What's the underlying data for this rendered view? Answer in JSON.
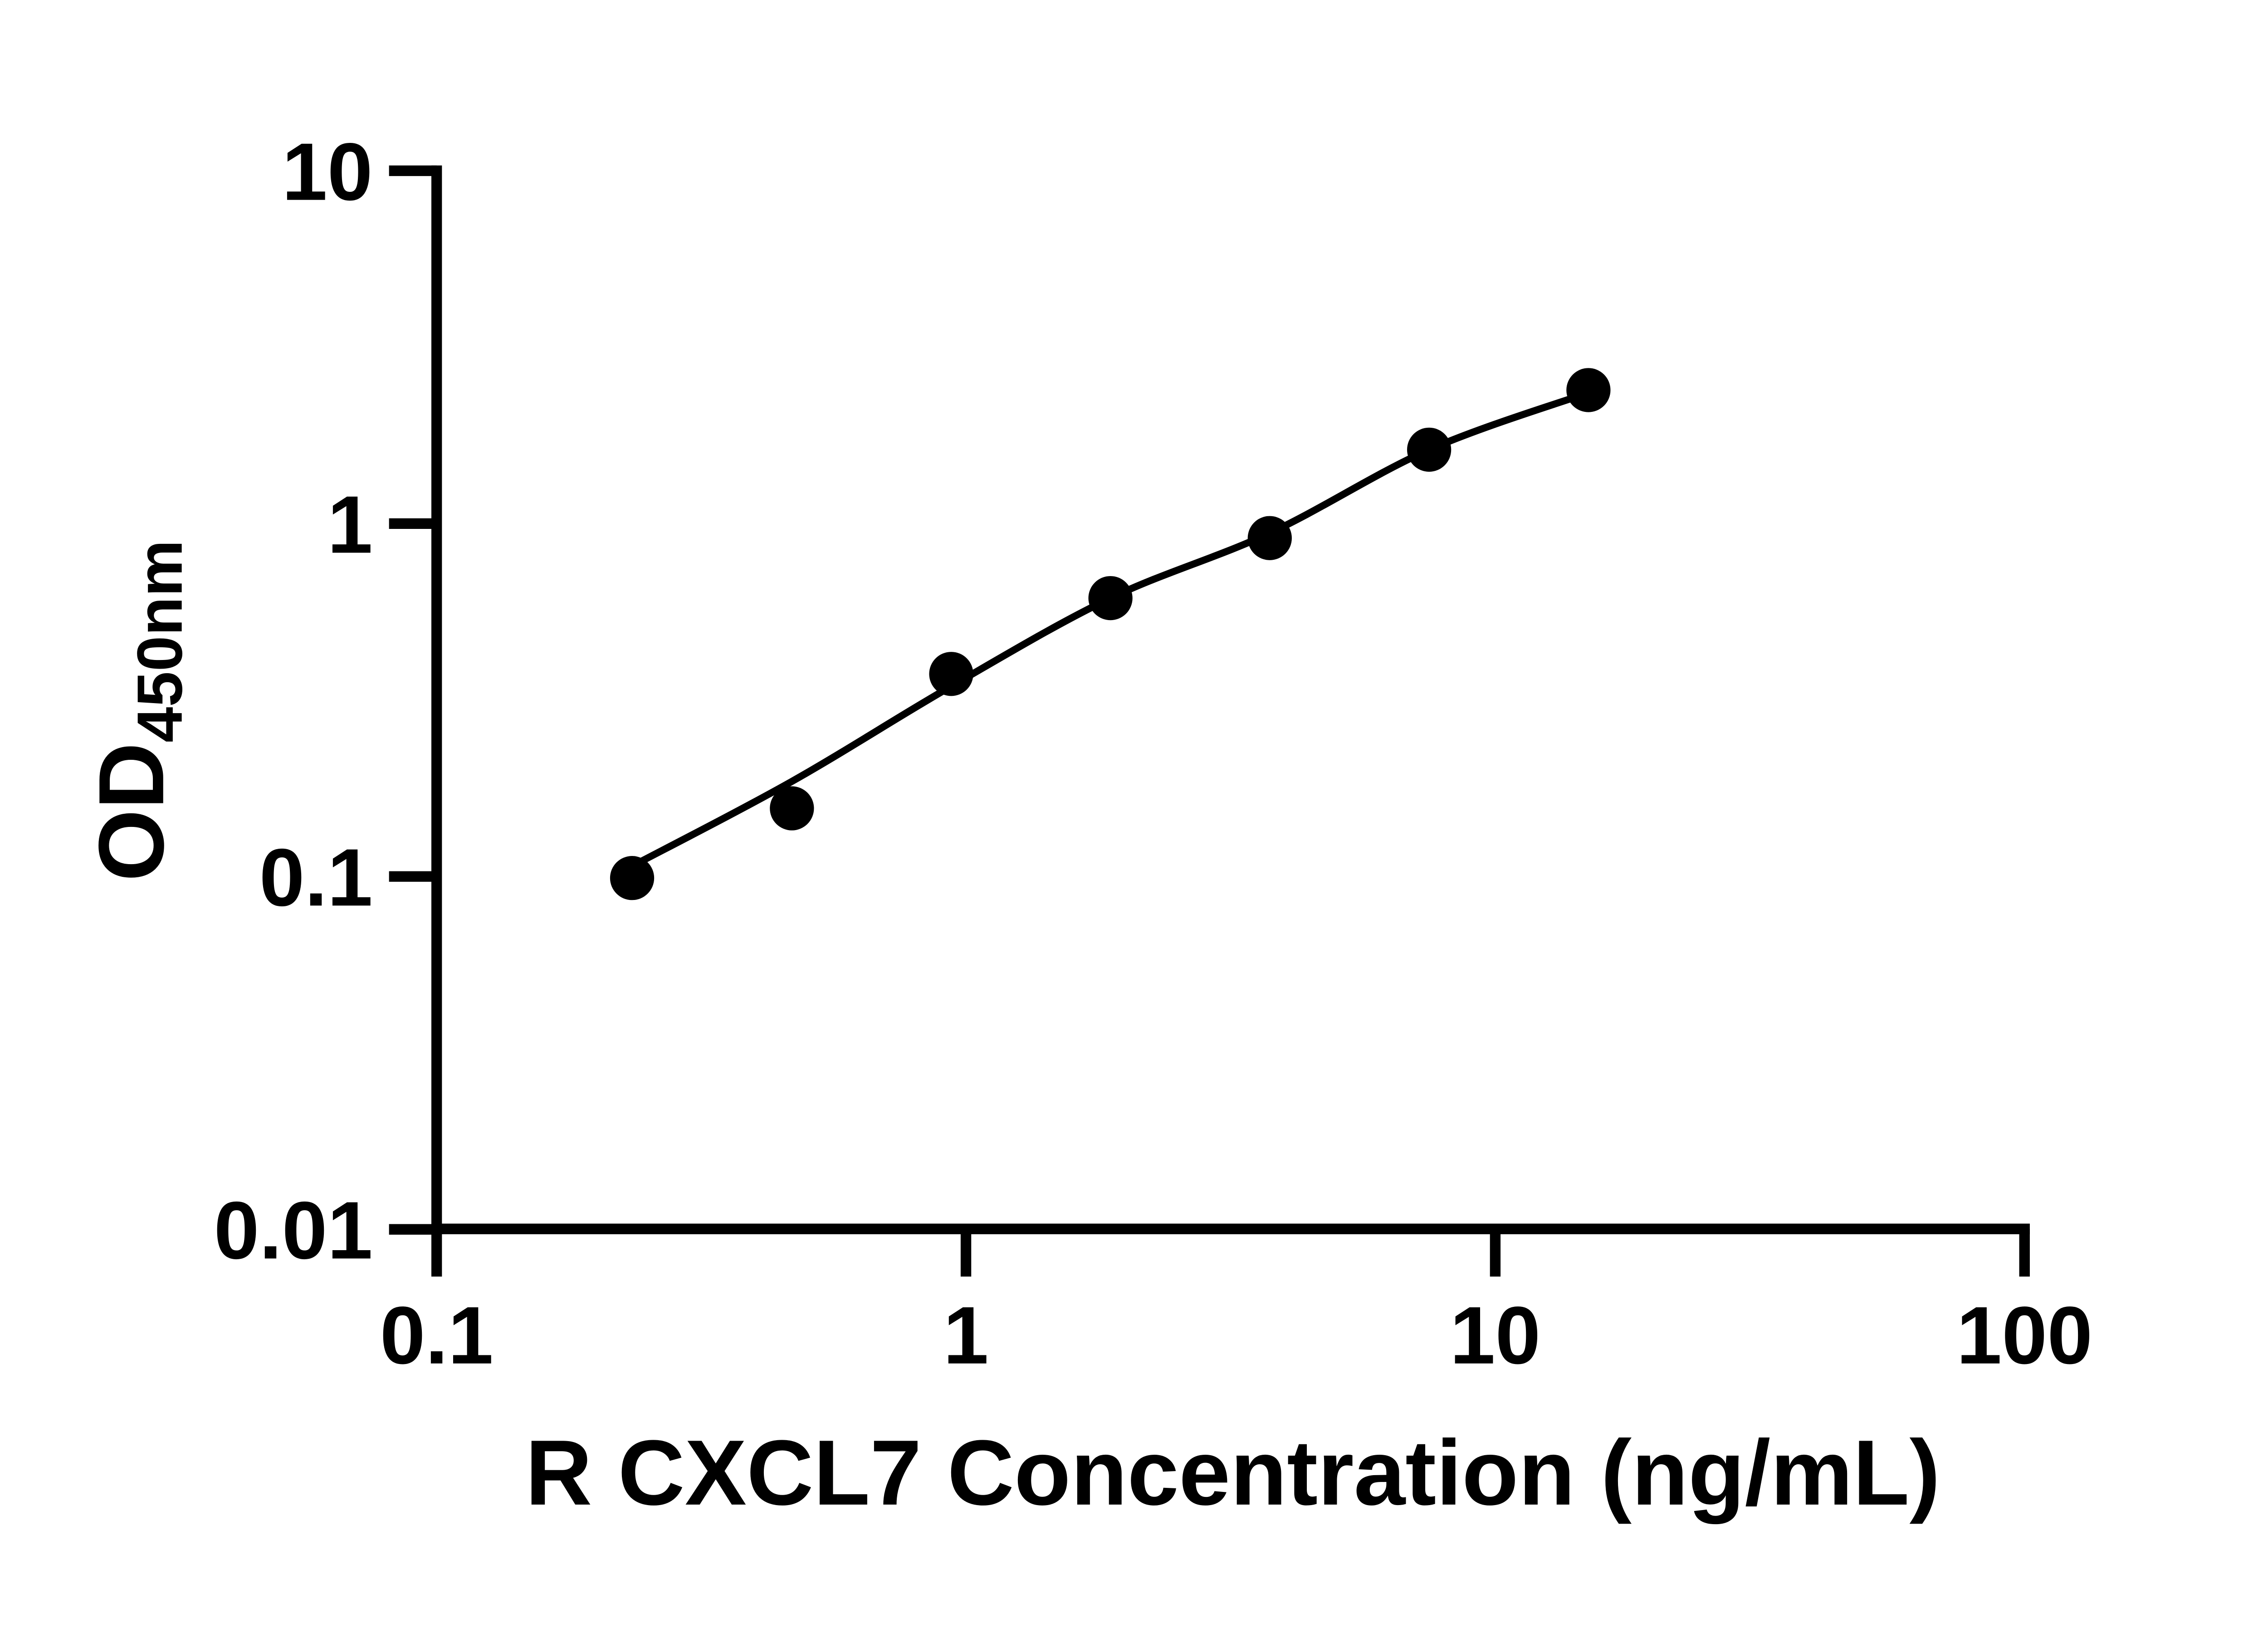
{
  "colors": {
    "ink": "#000000",
    "background": "#ffffff"
  },
  "chart_data": {
    "type": "scatter",
    "title": "",
    "xlabel": "R CXCL7 Concentration (ng/mL)",
    "ylabel_main": "OD",
    "ylabel_sub": "450nm",
    "x_scale": "log10",
    "y_scale": "log10",
    "xlim": [
      0.1,
      100
    ],
    "ylim": [
      0.01,
      10
    ],
    "x_tick_labels": [
      "0.1",
      "1",
      "10",
      "100"
    ],
    "y_tick_labels": [
      "10",
      "1",
      "0.1",
      "0.01"
    ],
    "grid": false,
    "legend": false,
    "series": [
      {
        "points": [
          {
            "x": 0.234,
            "y": 0.099
          },
          {
            "x": 0.469,
            "y": 0.156
          },
          {
            "x": 0.938,
            "y": 0.375
          },
          {
            "x": 1.875,
            "y": 0.615
          },
          {
            "x": 3.75,
            "y": 0.91
          },
          {
            "x": 7.5,
            "y": 1.62
          },
          {
            "x": 15,
            "y": 2.39
          }
        ],
        "fit_curve_y_at_points": [
          0.107,
          0.186,
          0.346,
          0.615,
          0.94,
          1.62,
          2.35
        ]
      }
    ]
  }
}
